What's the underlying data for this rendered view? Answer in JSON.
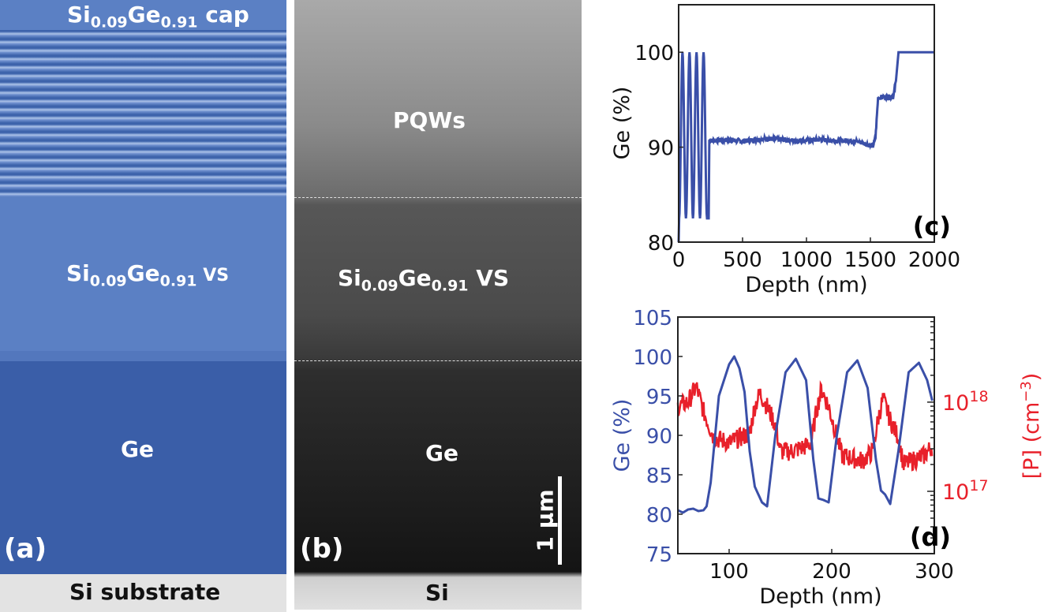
{
  "panel_a": {
    "tag": "(a)",
    "cap_label": {
      "a": "Si",
      "a_sub": "0.09",
      "b": "Ge",
      "b_sub": "0.91",
      "c": " cap"
    },
    "vs_label": {
      "a": "Si",
      "a_sub": "0.09",
      "b": "Ge",
      "b_sub": "0.91",
      "c": " VS"
    },
    "ge_label": "Ge",
    "substrate_label": "Si substrate",
    "colors": {
      "layer": "#5b80c4",
      "ge": "#3a5ea8",
      "substrate": "#e3e3e3"
    }
  },
  "panel_b": {
    "tag": "(b)",
    "pqw_label": "PQWs",
    "vs_label": {
      "a": "Si",
      "a_sub": "0.09",
      "b": "Ge",
      "b_sub": "0.91",
      "c": " VS"
    },
    "ge_label": "Ge",
    "si_label": "Si",
    "scale_bar_label": "1 μm"
  },
  "chart_data": [
    {
      "type": "line",
      "panel_tag": "(c)",
      "xlabel": "Depth (nm)",
      "ylabel": "Ge (%)",
      "xlim": [
        0,
        2000
      ],
      "ylim": [
        80,
        105
      ],
      "xticks": [
        0,
        500,
        1000,
        1500,
        2000
      ],
      "yticks": [
        80,
        90,
        100
      ],
      "grid": false,
      "color": "#3a4fa8",
      "series": [
        {
          "x": [
            0,
            4,
            30,
            57,
            85,
            112,
            140,
            167,
            195,
            222,
            235,
            240,
            300,
            400,
            500,
            600,
            700,
            800,
            900,
            1000,
            1100,
            1200,
            1300,
            1400,
            1450,
            1520,
            1540,
            1560,
            1600,
            1680,
            1700,
            1720,
            1800,
            2000
          ],
          "y": [
            80,
            82.5,
            100,
            82.5,
            100,
            82.5,
            100,
            82.5,
            100,
            82.5,
            82.5,
            90.7,
            90.7,
            90.8,
            90.6,
            90.8,
            90.9,
            90.8,
            90.7,
            90.7,
            90.8,
            90.7,
            90.7,
            90.6,
            90.4,
            90.1,
            91,
            95.2,
            95.3,
            95.3,
            97,
            100,
            100,
            100
          ]
        }
      ]
    },
    {
      "type": "line",
      "panel_tag": "(d)",
      "xlabel": "Depth (nm)",
      "ylabel": "Ge (%)",
      "ylabel_right": "[P] (cm",
      "ylabel_right_sup": "−3",
      "ylabel_right_end": ")",
      "xlim": [
        50,
        300
      ],
      "ylim": [
        75,
        105
      ],
      "ylim_right": [
        2e+16,
        9e+18
      ],
      "yscale_right": "log",
      "xticks": [
        100,
        200,
        300
      ],
      "yticks": [
        75,
        80,
        85,
        90,
        95,
        100,
        105
      ],
      "yticks_right": [
        {
          "base": "10",
          "exp": "17",
          "value": 1e+17
        },
        {
          "base": "10",
          "exp": "18",
          "value": 1e+18
        }
      ],
      "grid": false,
      "series": [
        {
          "axis": "left",
          "color": "#3a4fa8",
          "x": [
            50,
            55,
            60,
            65,
            70,
            75,
            78,
            82,
            90,
            100,
            105,
            110,
            115,
            120,
            125,
            132,
            137,
            145,
            155,
            165,
            175,
            182,
            187,
            192,
            197,
            205,
            215,
            225,
            235,
            243,
            248,
            252,
            257,
            265,
            275,
            285,
            293,
            298
          ],
          "y": [
            80.5,
            80.2,
            80.6,
            80.7,
            80.4,
            80.5,
            81,
            84,
            95,
            99,
            100,
            98.5,
            95.5,
            88,
            83.5,
            81.5,
            81,
            90,
            98,
            99.7,
            97,
            87,
            82,
            81.8,
            81.5,
            90,
            98,
            99.5,
            96,
            87,
            83,
            82.5,
            81.3,
            88,
            98,
            99.2,
            97,
            94.4
          ]
        },
        {
          "axis": "right",
          "color": "#e8202a",
          "x": [
            50,
            60,
            68,
            75,
            80,
            85,
            100,
            115,
            120,
            125,
            130,
            137,
            145,
            150,
            160,
            175,
            180,
            185,
            190,
            197,
            203,
            210,
            230,
            240,
            245,
            250,
            257,
            265,
            270,
            290,
            298
          ],
          "y": [
            8.9e+17,
            1e+18,
            1.5e+18,
            7.9e+17,
            5.6e+17,
            4e+17,
            3.5e+17,
            4.2e+17,
            4.5e+17,
            8.9e+17,
            1.26e+18,
            8.9e+17,
            5.6e+17,
            2.8e+17,
            2.8e+17,
            3.2e+17,
            3.5e+17,
            7.9e+17,
            1.4e+18,
            8.9e+17,
            5e+17,
            2.5e+17,
            2.2e+17,
            2.8e+17,
            6.3e+17,
            1.1e+18,
            6.3e+17,
            4e+17,
            2e+17,
            2.5e+17,
            3.2e+17
          ]
        }
      ]
    }
  ]
}
